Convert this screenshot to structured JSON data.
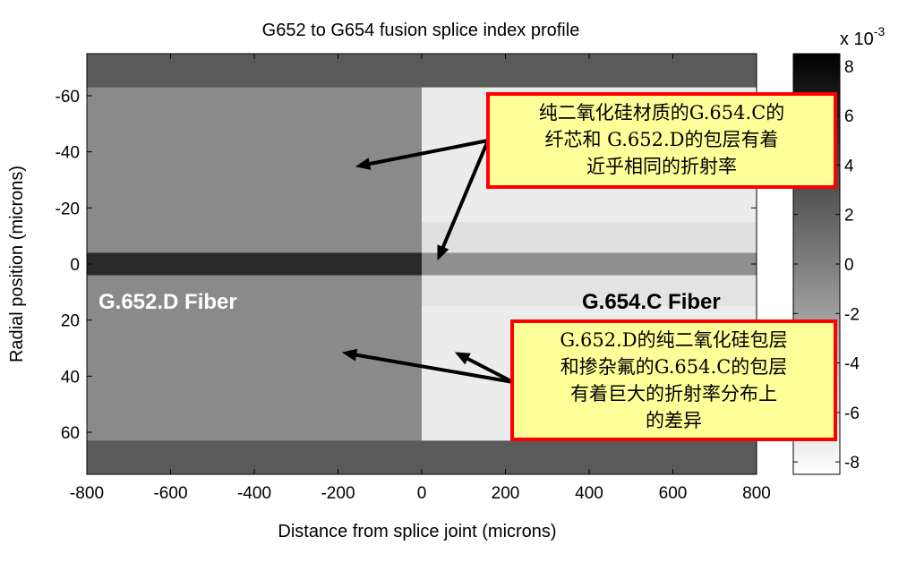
{
  "chart_data": {
    "type": "heatmap",
    "title": "G652 to G654 fusion splice index profile",
    "xlabel": "Distance from splice joint (microns)",
    "ylabel": "Radial position (microns)",
    "xlim": [
      -800,
      800
    ],
    "ylim": [
      -75,
      75
    ],
    "y_reversed": true,
    "xticks": [
      -800,
      -600,
      -400,
      -200,
      0,
      200,
      400,
      600,
      800
    ],
    "yticks": [
      -60,
      -40,
      -20,
      0,
      20,
      40,
      60
    ],
    "colorbar": {
      "label": "x 10",
      "exponent": "-3",
      "range": [
        -8.5,
        8.5
      ],
      "ticks": [
        8,
        6,
        4,
        2,
        0,
        -2,
        -4,
        -6,
        -8
      ],
      "colormap": "gray-reversed"
    },
    "regions": [
      {
        "x": [
          -800,
          800
        ],
        "y": [
          -75,
          75
        ],
        "value": 2.5
      },
      {
        "x": [
          -800,
          0
        ],
        "y": [
          -63,
          63
        ],
        "value": -0.7
      },
      {
        "x": [
          -800,
          0
        ],
        "y": [
          -4,
          4
        ],
        "value": 5.7
      },
      {
        "x": [
          0,
          800
        ],
        "y": [
          -63,
          63
        ],
        "value": -7.2
      },
      {
        "x": [
          0,
          800
        ],
        "y": [
          -15,
          -4
        ],
        "value": -6.4
      },
      {
        "x": [
          0,
          800
        ],
        "y": [
          4,
          15
        ],
        "value": -6.6
      },
      {
        "x": [
          0,
          800
        ],
        "y": [
          -4,
          4
        ],
        "value": -1.0
      }
    ],
    "annotations": {
      "left_fiber": "G.652.D Fiber",
      "right_fiber": "G.654.C Fiber",
      "note_top": [
        "纯二氧化硅材质的G.654.C的",
        "纤芯和 G.652.D的包层有着",
        "近乎相同的折射率"
      ],
      "note_bottom": [
        "G.652.D的纯二氧化硅包层",
        "和掺杂氟的G.654.C的包层",
        "有着巨大的折射率分布上",
        "的差异"
      ]
    }
  }
}
